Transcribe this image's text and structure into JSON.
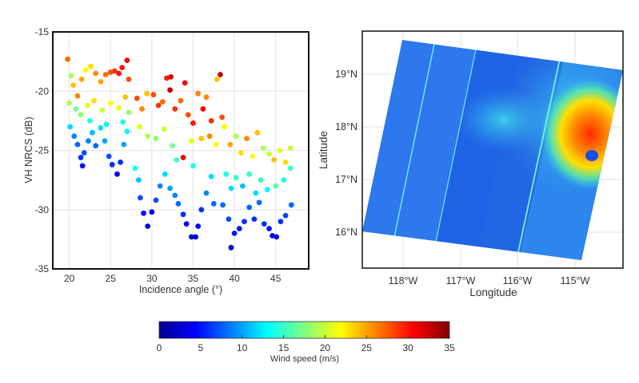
{
  "chart_data": [
    {
      "type": "scatter",
      "xlabel": "Incidence angle (°)",
      "ylabel": "VH NRCS (dB)",
      "xlim": [
        18,
        49
      ],
      "ylim": [
        -35,
        -15
      ],
      "xticks": [
        20,
        25,
        30,
        35,
        40,
        45
      ],
      "yticks": [
        -15,
        -20,
        -25,
        -30,
        -35
      ],
      "grid": true,
      "color_by": "wind_speed",
      "point_fields": [
        "incidence_angle",
        "vh_nrcs_db",
        "wind_speed_ms"
      ],
      "points": [
        [
          19.8,
          -17.3,
          27
        ],
        [
          20.2,
          -18.7,
          19
        ],
        [
          20.5,
          -19.5,
          24
        ],
        [
          21.0,
          -20.4,
          26
        ],
        [
          21.5,
          -19.0,
          25
        ],
        [
          22.0,
          -18.2,
          22
        ],
        [
          22.6,
          -17.9,
          23
        ],
        [
          23.2,
          -18.5,
          26
        ],
        [
          23.8,
          -19.2,
          25
        ],
        [
          24.4,
          -18.6,
          27
        ],
        [
          25.0,
          -18.4,
          28
        ],
        [
          25.5,
          -18.3,
          29
        ],
        [
          26.0,
          -18.5,
          30
        ],
        [
          26.4,
          -18.0,
          30
        ],
        [
          27.0,
          -17.4,
          31
        ],
        [
          27.2,
          -19.0,
          28
        ],
        [
          20.0,
          -21.0,
          19
        ],
        [
          20.8,
          -21.5,
          17
        ],
        [
          21.4,
          -22.0,
          18
        ],
        [
          22.2,
          -21.2,
          21
        ],
        [
          23.0,
          -20.8,
          23
        ],
        [
          24.0,
          -21.6,
          20
        ],
        [
          25.0,
          -21.0,
          22
        ],
        [
          26.0,
          -21.4,
          21
        ],
        [
          26.8,
          -20.5,
          24
        ],
        [
          27.2,
          -21.8,
          18
        ],
        [
          20.1,
          -23.0,
          12
        ],
        [
          20.6,
          -23.8,
          9
        ],
        [
          21.0,
          -24.5,
          8
        ],
        [
          21.4,
          -25.6,
          6
        ],
        [
          21.6,
          -26.3,
          5
        ],
        [
          21.8,
          -25.2,
          7
        ],
        [
          22.3,
          -24.2,
          9
        ],
        [
          22.8,
          -23.5,
          11
        ],
        [
          23.2,
          -24.6,
          8
        ],
        [
          23.8,
          -23.1,
          12
        ],
        [
          24.3,
          -24.2,
          10
        ],
        [
          24.8,
          -25.5,
          7
        ],
        [
          25.2,
          -26.2,
          6
        ],
        [
          25.8,
          -27.0,
          4
        ],
        [
          26.2,
          -26.0,
          6
        ],
        [
          26.6,
          -24.5,
          10
        ],
        [
          27.0,
          -23.4,
          13
        ],
        [
          22.5,
          -22.5,
          14
        ],
        [
          24.5,
          -22.8,
          13
        ],
        [
          26.5,
          -22.6,
          14
        ],
        [
          28.2,
          -20.6,
          28
        ],
        [
          28.8,
          -21.5,
          26
        ],
        [
          29.4,
          -20.2,
          24
        ],
        [
          30.2,
          -20.3,
          28
        ],
        [
          30.8,
          -21.2,
          29
        ],
        [
          31.3,
          -20.9,
          27
        ],
        [
          31.8,
          -18.9,
          30
        ],
        [
          32.3,
          -18.8,
          32
        ],
        [
          32.2,
          -19.9,
          33
        ],
        [
          32.8,
          -21.5,
          29
        ],
        [
          33.5,
          -20.8,
          27
        ],
        [
          34.0,
          -19.3,
          31
        ],
        [
          34.4,
          -22.0,
          28
        ],
        [
          35.0,
          -22.7,
          30
        ],
        [
          35.6,
          -20.2,
          26
        ],
        [
          36.2,
          -21.5,
          31
        ],
        [
          36.6,
          -20.5,
          26
        ],
        [
          37.2,
          -22.5,
          29
        ],
        [
          37.9,
          -19.0,
          24
        ],
        [
          38.3,
          -18.6,
          33
        ],
        [
          38.5,
          -22.2,
          28
        ],
        [
          28.5,
          -23.0,
          21
        ],
        [
          29.5,
          -23.8,
          19
        ],
        [
          30.5,
          -24.0,
          18
        ],
        [
          31.5,
          -23.2,
          20
        ],
        [
          32.5,
          -24.6,
          17
        ],
        [
          33.8,
          -25.6,
          31
        ],
        [
          34.8,
          -24.2,
          21
        ],
        [
          36.0,
          -24.0,
          24
        ],
        [
          37.0,
          -23.8,
          26
        ],
        [
          37.8,
          -24.5,
          22
        ],
        [
          28.0,
          -26.5,
          14
        ],
        [
          28.4,
          -27.5,
          11
        ],
        [
          28.6,
          -29.0,
          7
        ],
        [
          29.0,
          -30.3,
          5
        ],
        [
          29.5,
          -31.4,
          3
        ],
        [
          30.0,
          -30.2,
          4
        ],
        [
          30.5,
          -29.2,
          7
        ],
        [
          31.0,
          -28.0,
          9
        ],
        [
          31.6,
          -27.0,
          12
        ],
        [
          32.2,
          -28.2,
          10
        ],
        [
          32.8,
          -28.8,
          9
        ],
        [
          33.2,
          -29.5,
          8
        ],
        [
          33.8,
          -30.4,
          6
        ],
        [
          34.2,
          -31.2,
          4
        ],
        [
          34.8,
          -32.3,
          3
        ],
        [
          35.3,
          -32.3,
          3
        ],
        [
          35.6,
          -31.4,
          4
        ],
        [
          36.0,
          -30.0,
          6
        ],
        [
          36.6,
          -28.6,
          9
        ],
        [
          37.2,
          -27.2,
          12
        ],
        [
          37.5,
          -29.5,
          8
        ],
        [
          35.0,
          -26.3,
          14
        ],
        [
          33.0,
          -25.8,
          15
        ],
        [
          38.8,
          -23.0,
          22
        ],
        [
          39.5,
          -24.5,
          25
        ],
        [
          40.2,
          -23.8,
          19
        ],
        [
          40.8,
          -25.2,
          23
        ],
        [
          41.5,
          -24.0,
          26
        ],
        [
          42.2,
          -25.5,
          22
        ],
        [
          42.8,
          -23.5,
          24
        ],
        [
          43.5,
          -24.8,
          19
        ],
        [
          44.2,
          -25.3,
          20
        ],
        [
          44.8,
          -25.8,
          24
        ],
        [
          45.5,
          -25.0,
          21
        ],
        [
          46.2,
          -26.0,
          23
        ],
        [
          46.8,
          -24.8,
          20
        ],
        [
          39.0,
          -27.0,
          14
        ],
        [
          39.6,
          -28.2,
          12
        ],
        [
          40.2,
          -27.3,
          15
        ],
        [
          41.0,
          -28.0,
          11
        ],
        [
          41.8,
          -27.0,
          15
        ],
        [
          42.6,
          -28.6,
          12
        ],
        [
          43.2,
          -27.5,
          15
        ],
        [
          44.0,
          -28.3,
          13
        ],
        [
          45.0,
          -28.0,
          16
        ],
        [
          46.0,
          -27.5,
          14
        ],
        [
          46.8,
          -26.5,
          15
        ],
        [
          38.6,
          -29.6,
          8
        ],
        [
          39.3,
          -30.8,
          7
        ],
        [
          39.6,
          -33.2,
          3
        ],
        [
          40.0,
          -32.0,
          5
        ],
        [
          40.6,
          -31.6,
          5
        ],
        [
          41.2,
          -31.0,
          6
        ],
        [
          41.8,
          -29.8,
          8
        ],
        [
          42.4,
          -30.8,
          6
        ],
        [
          43.0,
          -29.4,
          8
        ],
        [
          43.6,
          -31.2,
          6
        ],
        [
          44.2,
          -31.6,
          5
        ],
        [
          44.6,
          -32.2,
          4
        ],
        [
          45.1,
          -32.3,
          4
        ],
        [
          45.6,
          -31.0,
          6
        ],
        [
          46.2,
          -30.5,
          7
        ],
        [
          46.9,
          -29.6,
          8
        ]
      ]
    },
    {
      "type": "heatmap",
      "subtype": "map",
      "xlabel": "Longitude",
      "ylabel": "Latitude",
      "xticks": [
        "118°W",
        "117°W",
        "116°W",
        "115°W"
      ],
      "yticks": [
        "19°N",
        "18°N",
        "17°N",
        "16°N"
      ],
      "grid": true
    }
  ],
  "colorbar": {
    "label": "Wind speed (m/s)",
    "range": [
      0,
      35
    ],
    "ticks": [
      "0",
      "5",
      "10",
      "15",
      "20",
      "25",
      "30",
      "35"
    ],
    "colormap": "jet"
  }
}
